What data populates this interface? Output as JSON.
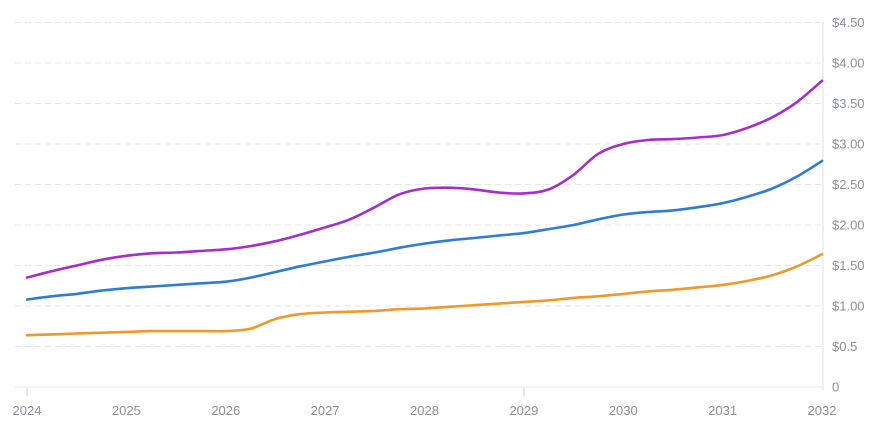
{
  "chart_data": {
    "type": "line",
    "title": "",
    "xlabel": "",
    "ylabel": "",
    "xlim": [
      2024,
      2032
    ],
    "ylim": [
      0,
      4.5
    ],
    "grid": "horizontal-dashed",
    "y_axis_position": "right",
    "legend": "none",
    "x_tick_labels": [
      "2024",
      "2025",
      "2026",
      "2027",
      "2028",
      "2029",
      "2030",
      "2031",
      "2032"
    ],
    "x_tick_mark_years": [
      2024,
      2029
    ],
    "y_ticks": [
      {
        "value": 0,
        "label": "0"
      },
      {
        "value": 0.5,
        "label": "$0.5"
      },
      {
        "value": 1,
        "label": "$1.00"
      },
      {
        "value": 1.5,
        "label": "$1.50"
      },
      {
        "value": 2,
        "label": "$2.00"
      },
      {
        "value": 2.5,
        "label": "$2.50"
      },
      {
        "value": 3,
        "label": "$3.00"
      },
      {
        "value": 3.5,
        "label": "$3.50"
      },
      {
        "value": 4,
        "label": "$4.00"
      },
      {
        "value": 4.5,
        "label": "$4.50"
      }
    ],
    "x": [
      2024,
      2024.25,
      2024.5,
      2024.75,
      2025,
      2025.25,
      2025.5,
      2025.75,
      2026,
      2026.25,
      2026.5,
      2026.75,
      2027,
      2027.25,
      2027.5,
      2027.75,
      2028,
      2028.25,
      2028.5,
      2028.75,
      2029,
      2029.25,
      2029.5,
      2029.75,
      2030,
      2030.25,
      2030.5,
      2030.75,
      2031,
      2031.25,
      2031.5,
      2031.75,
      2032
    ],
    "series": [
      {
        "name": "series-purple",
        "color": "#a62cd0",
        "values": [
          1.35,
          1.43,
          1.5,
          1.57,
          1.62,
          1.65,
          1.66,
          1.68,
          1.7,
          1.74,
          1.8,
          1.88,
          1.97,
          2.07,
          2.22,
          2.38,
          2.45,
          2.46,
          2.44,
          2.4,
          2.39,
          2.44,
          2.62,
          2.88,
          3.0,
          3.05,
          3.06,
          3.08,
          3.11,
          3.2,
          3.33,
          3.52,
          3.78
        ]
      },
      {
        "name": "series-blue",
        "color": "#2d7dd7",
        "values": [
          1.08,
          1.12,
          1.15,
          1.19,
          1.22,
          1.24,
          1.26,
          1.28,
          1.3,
          1.35,
          1.42,
          1.49,
          1.55,
          1.61,
          1.66,
          1.72,
          1.77,
          1.81,
          1.84,
          1.87,
          1.9,
          1.95,
          2.0,
          2.07,
          2.13,
          2.16,
          2.18,
          2.22,
          2.27,
          2.35,
          2.45,
          2.6,
          2.79
        ]
      },
      {
        "name": "series-orange",
        "color": "#f09828",
        "values": [
          0.64,
          0.65,
          0.66,
          0.67,
          0.68,
          0.69,
          0.69,
          0.69,
          0.69,
          0.72,
          0.84,
          0.9,
          0.92,
          0.93,
          0.94,
          0.96,
          0.97,
          0.99,
          1.01,
          1.03,
          1.05,
          1.07,
          1.1,
          1.12,
          1.15,
          1.18,
          1.2,
          1.23,
          1.26,
          1.31,
          1.38,
          1.49,
          1.64
        ]
      }
    ]
  },
  "styles": {
    "background": "#ffffff",
    "grid_color": "#e6e6e6",
    "baseline_color": "#ededed",
    "axis_line_color": "#e0e0e0",
    "tick_color": "#cccccc",
    "label_color": "#8b8f96"
  }
}
